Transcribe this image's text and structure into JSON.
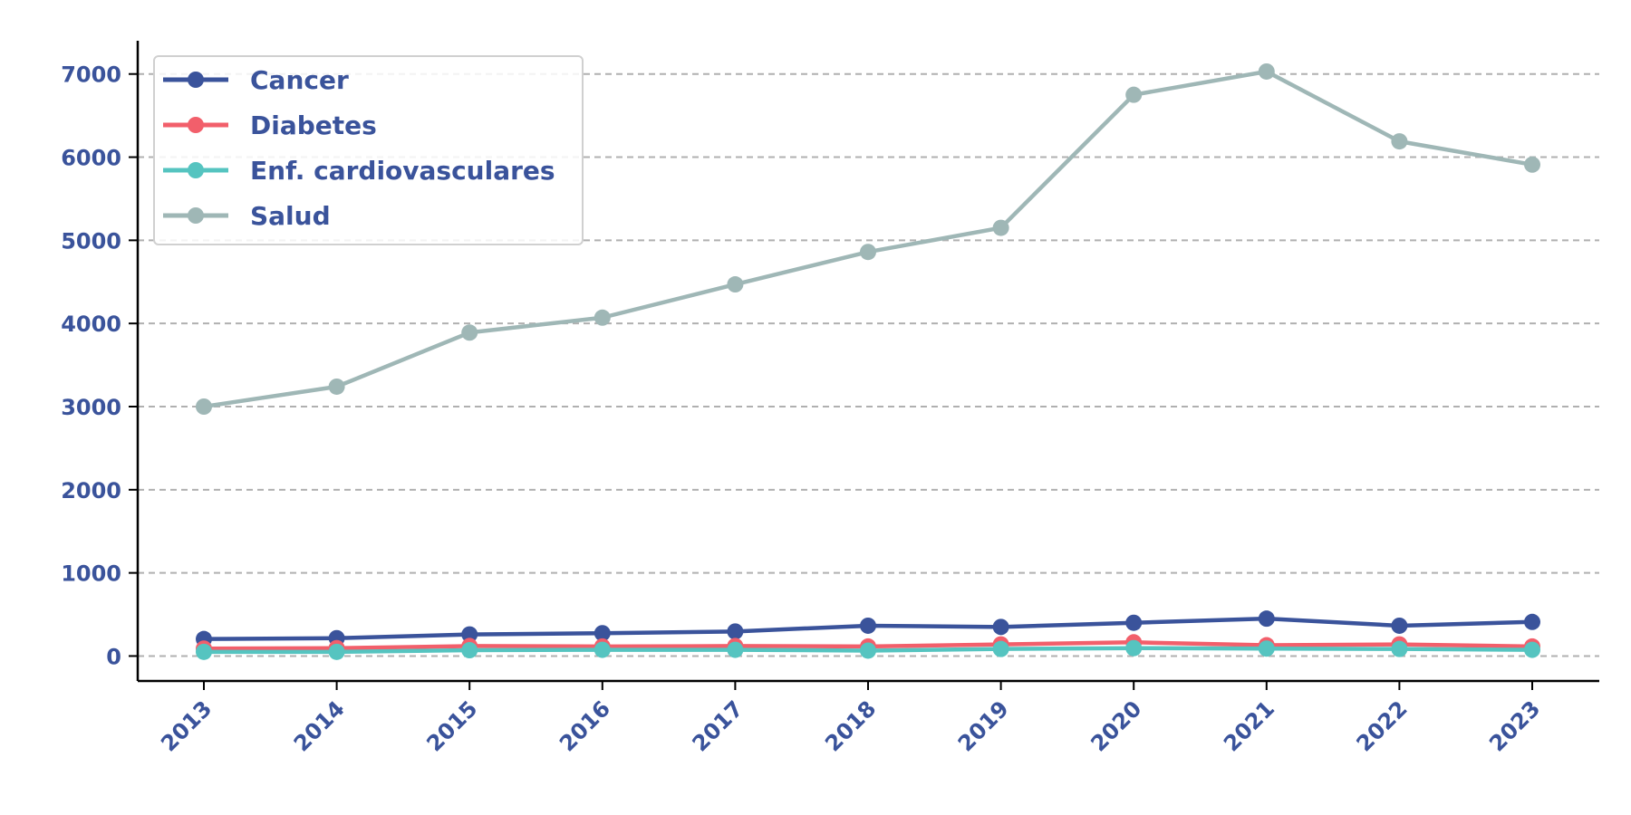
{
  "chart_data": {
    "type": "line",
    "title": "",
    "xlabel": "",
    "ylabel": "",
    "x": [
      "2013",
      "2014",
      "2015",
      "2016",
      "2017",
      "2018",
      "2019",
      "2020",
      "2021",
      "2022",
      "2023"
    ],
    "ylim": [
      -300,
      7400
    ],
    "yticks": [
      "0",
      "1000",
      "2000",
      "3000",
      "4000",
      "5000",
      "6000",
      "7000"
    ],
    "grid": "horizontal-dashed",
    "legend_position": "top-left",
    "series": [
      {
        "name": "Cancer",
        "color": "#3a539b",
        "values": [
          205,
          215,
          260,
          275,
          295,
          365,
          350,
          400,
          450,
          365,
          410
        ]
      },
      {
        "name": "Diabetes",
        "color": "#f25f6b",
        "values": [
          90,
          95,
          120,
          115,
          120,
          115,
          140,
          165,
          130,
          140,
          115
        ]
      },
      {
        "name": "Enf. cardiovasculares",
        "color": "#55c4c0",
        "values": [
          50,
          50,
          70,
          75,
          75,
          65,
          85,
          95,
          90,
          85,
          75
        ]
      },
      {
        "name": "Salud",
        "color": "#9fb7b6",
        "values": [
          3000,
          3240,
          3890,
          4070,
          4470,
          4860,
          5150,
          6750,
          7030,
          6190,
          5910
        ]
      }
    ],
    "text_color": "#3a539b"
  }
}
